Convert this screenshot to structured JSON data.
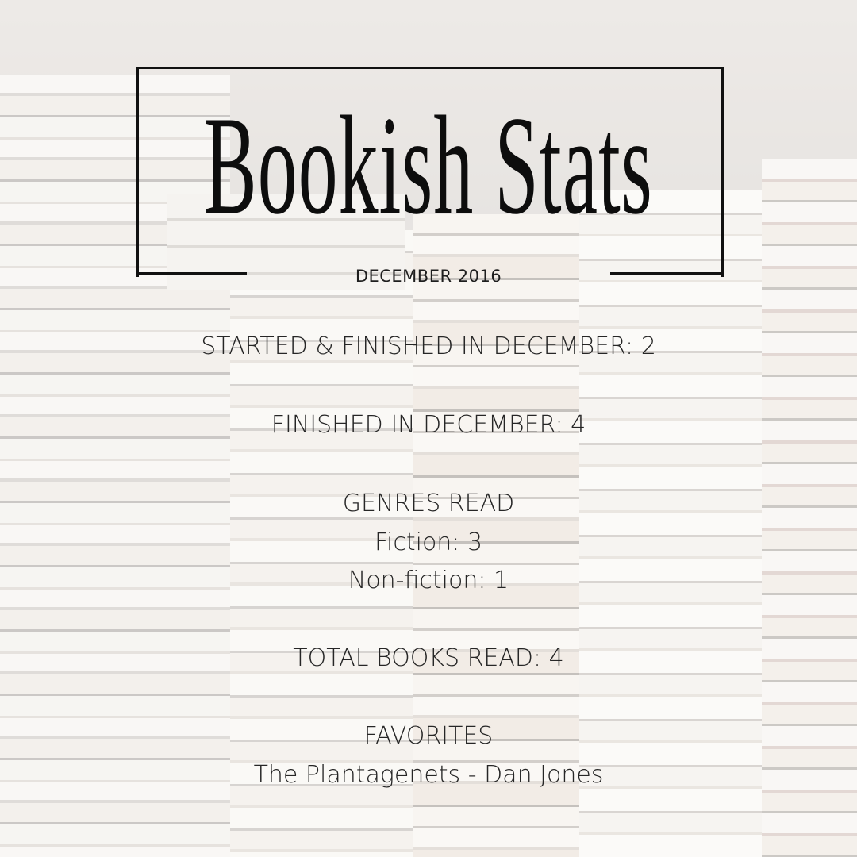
{
  "title": "Bookish Stats",
  "subtitle": "DECEMBER 2016",
  "stats": {
    "started_finished": "STARTED & FINISHED IN DECEMBER: 2",
    "finished": "FINISHED IN DECEMBER: 4",
    "genres_heading": "GENRES READ",
    "fiction": "Fiction: 3",
    "nonfiction": "Non-fiction: 1",
    "total": "TOTAL BOOKS READ: 4",
    "favorites_heading": "FAVORITES",
    "favorite_1": "The Plantagenets - Dan Jones"
  },
  "colors": {
    "text": "#262626",
    "frame": "#111111"
  }
}
